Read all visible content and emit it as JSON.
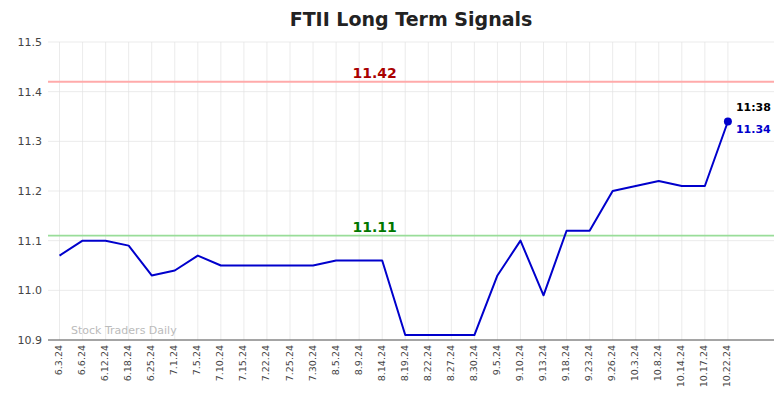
{
  "chart_data": {
    "type": "line",
    "title": "FTII Long Term Signals",
    "categories": [
      "6.3.24",
      "6.6.24",
      "6.12.24",
      "6.18.24",
      "6.25.24",
      "7.1.24",
      "7.5.24",
      "7.10.24",
      "7.15.24",
      "7.22.24",
      "7.25.24",
      "7.30.24",
      "8.5.24",
      "8.9.24",
      "8.14.24",
      "8.19.24",
      "8.22.24",
      "8.27.24",
      "8.30.24",
      "9.5.24",
      "9.10.24",
      "9.13.24",
      "9.18.24",
      "9.23.24",
      "9.26.24",
      "10.3.24",
      "10.8.24",
      "10.14.24",
      "10.17.24",
      "10.22.24"
    ],
    "series": [
      {
        "color": "#0000cc",
        "values": [
          11.07,
          11.1,
          11.1,
          11.09,
          11.03,
          11.04,
          11.07,
          11.05,
          11.05,
          11.05,
          11.05,
          11.05,
          11.06,
          11.06,
          11.06,
          10.91,
          10.91,
          10.91,
          10.91,
          11.03,
          11.1,
          10.99,
          11.12,
          11.12,
          11.2,
          11.21,
          11.22,
          11.21,
          11.21,
          11.34
        ]
      }
    ],
    "reference_lines": [
      {
        "value": 11.42,
        "label": "11.42",
        "color": "#ffaaaa",
        "label_color": "#aa0000"
      },
      {
        "value": 11.11,
        "label": "11.11",
        "color": "#99dd99",
        "label_color": "#007700"
      }
    ],
    "annotations": [
      {
        "text": "11:38",
        "color": "#000000"
      },
      {
        "text": "11.34",
        "color": "#0000cc"
      }
    ],
    "watermark": "Stock Traders Daily",
    "watermark_color": "#bbbbbb",
    "ylim": [
      10.9,
      11.5
    ],
    "yticks": [
      10.9,
      {
        "value": 11.0,
        "label": "11.0"
      },
      11.1,
      11.2,
      11.3,
      11.4,
      11.5
    ],
    "grid": true
  }
}
